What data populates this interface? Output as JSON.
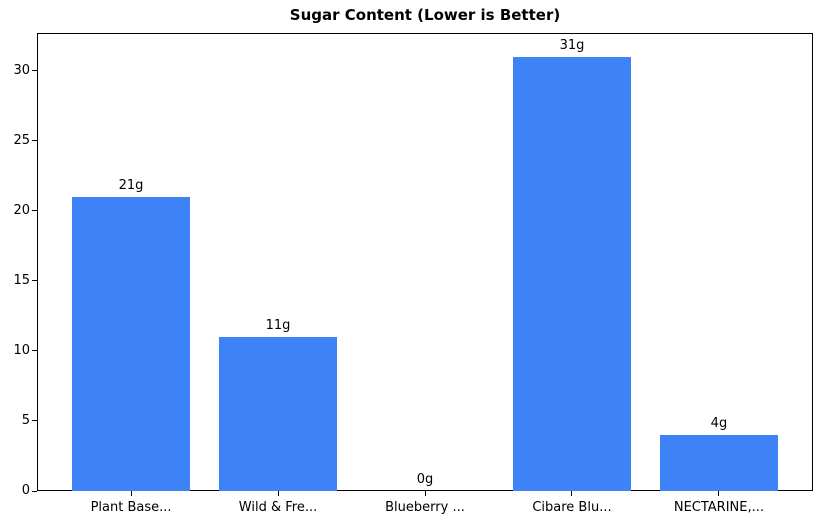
{
  "chart_data": {
    "type": "bar",
    "title": "Sugar Content (Lower is Better)",
    "categories": [
      "Plant Base...",
      "Wild & Fre...",
      "Blueberry ...",
      "Cibare Blu...",
      "NECTARINE,..."
    ],
    "values": [
      21,
      11,
      0,
      31,
      4
    ],
    "bar_labels": [
      "21g",
      "11g",
      "0g",
      "31g",
      "4g"
    ],
    "xlabel": "",
    "ylabel": "",
    "ylim": [
      0,
      32.7
    ],
    "yticks": [
      0,
      5,
      10,
      15,
      20,
      25,
      30
    ],
    "bar_color": "#3d82f6",
    "bar_width_fraction": 0.8,
    "grid": false,
    "legend": "none",
    "background_color": "#ffffff",
    "text_color": "#000000"
  }
}
